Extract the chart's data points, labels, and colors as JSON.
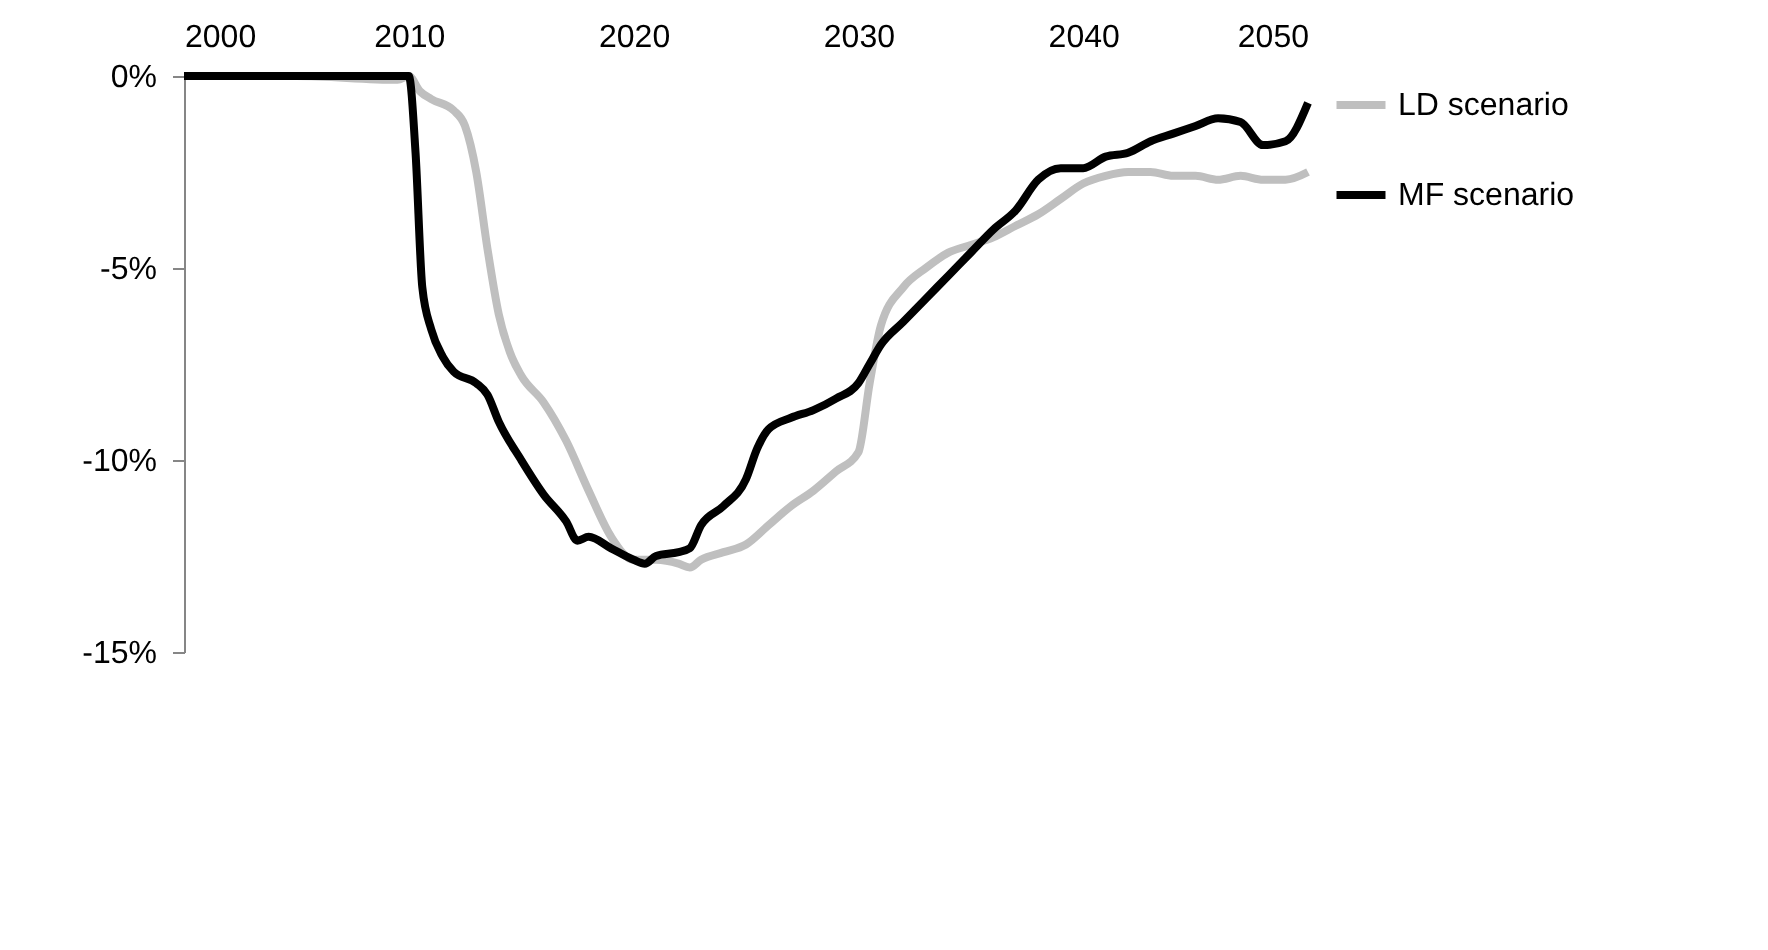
{
  "chart_data": {
    "type": "line",
    "series": [
      {
        "name": "LD scenario",
        "color": "#bfbfbf",
        "x": [
          2000,
          2005,
          2009.5,
          2010,
          2010.5,
          2011,
          2012,
          2012.5,
          2013,
          2013.5,
          2014,
          2014.5,
          2015,
          2016,
          2017,
          2018,
          2019,
          2020,
          2021,
          2022,
          2022.5,
          2023,
          2024,
          2025,
          2026,
          2027,
          2028,
          2029,
          2030,
          2030.5,
          2031,
          2032,
          2033,
          2034,
          2035,
          2036,
          2037,
          2038,
          2039,
          2040,
          2041,
          2042,
          2043,
          2044,
          2045,
          2046,
          2047,
          2048,
          2049,
          2050
        ],
        "values": [
          0,
          0,
          -0.1,
          0,
          -0.4,
          -0.6,
          -0.9,
          -1.3,
          -2.5,
          -4.5,
          -6.2,
          -7.2,
          -7.8,
          -8.5,
          -9.5,
          -10.8,
          -12.0,
          -12.6,
          -12.6,
          -12.7,
          -12.8,
          -12.6,
          -12.4,
          -12.2,
          -11.7,
          -11.2,
          -10.8,
          -10.3,
          -9.8,
          -8.0,
          -6.5,
          -5.5,
          -5.0,
          -4.6,
          -4.4,
          -4.2,
          -3.9,
          -3.6,
          -3.2,
          -2.8,
          -2.6,
          -2.5,
          -2.5,
          -2.6,
          -2.6,
          -2.7,
          -2.6,
          -2.7,
          -2.7,
          -2.5
        ]
      },
      {
        "name": "MF scenario",
        "color": "#000000",
        "x": [
          2000,
          2005,
          2009.5,
          2010,
          2010.3,
          2010.6,
          2011,
          2011.5,
          2012,
          2013,
          2013.5,
          2014,
          2015,
          2016,
          2017,
          2017.5,
          2018,
          2019,
          2020,
          2020.5,
          2021,
          2022,
          2022.5,
          2023,
          2024,
          2025,
          2025.5,
          2026,
          2027,
          2028,
          2029,
          2030,
          2030.5,
          2031,
          2032,
          2033,
          2034,
          2035,
          2036,
          2037,
          2038,
          2039,
          2040,
          2041,
          2042,
          2043,
          2044,
          2045,
          2046,
          2047,
          2048,
          2049,
          2050
        ],
        "values": [
          0,
          0,
          0,
          0,
          -2,
          -5.5,
          -6.6,
          -7.3,
          -7.7,
          -8.0,
          -8.3,
          -9.0,
          -10.0,
          -10.9,
          -11.6,
          -12.1,
          -12.0,
          -12.3,
          -12.6,
          -12.7,
          -12.5,
          -12.4,
          -12.3,
          -11.7,
          -11.2,
          -10.5,
          -9.7,
          -9.2,
          -8.9,
          -8.7,
          -8.4,
          -8.0,
          -7.5,
          -7.0,
          -6.4,
          -5.8,
          -5.2,
          -4.6,
          -4.0,
          -3.5,
          -2.7,
          -2.4,
          -2.4,
          -2.1,
          -2.0,
          -1.7,
          -1.5,
          -1.3,
          -1.1,
          -1.2,
          -1.8,
          -1.7,
          -0.7
        ]
      }
    ],
    "xlim": [
      2000,
      2050
    ],
    "xticks": [
      2000,
      2010,
      2020,
      2030,
      2040,
      2050
    ],
    "ylim": [
      -15,
      0
    ],
    "yticks": [
      {
        "value": -15,
        "label": "-15%"
      },
      {
        "value": -10,
        "label": "-10%"
      },
      {
        "value": -5,
        "label": "-5%"
      },
      {
        "value": 0,
        "label": "0%"
      }
    ],
    "grid": false,
    "legend": "right",
    "marker": "none",
    "line_style": "solid"
  }
}
